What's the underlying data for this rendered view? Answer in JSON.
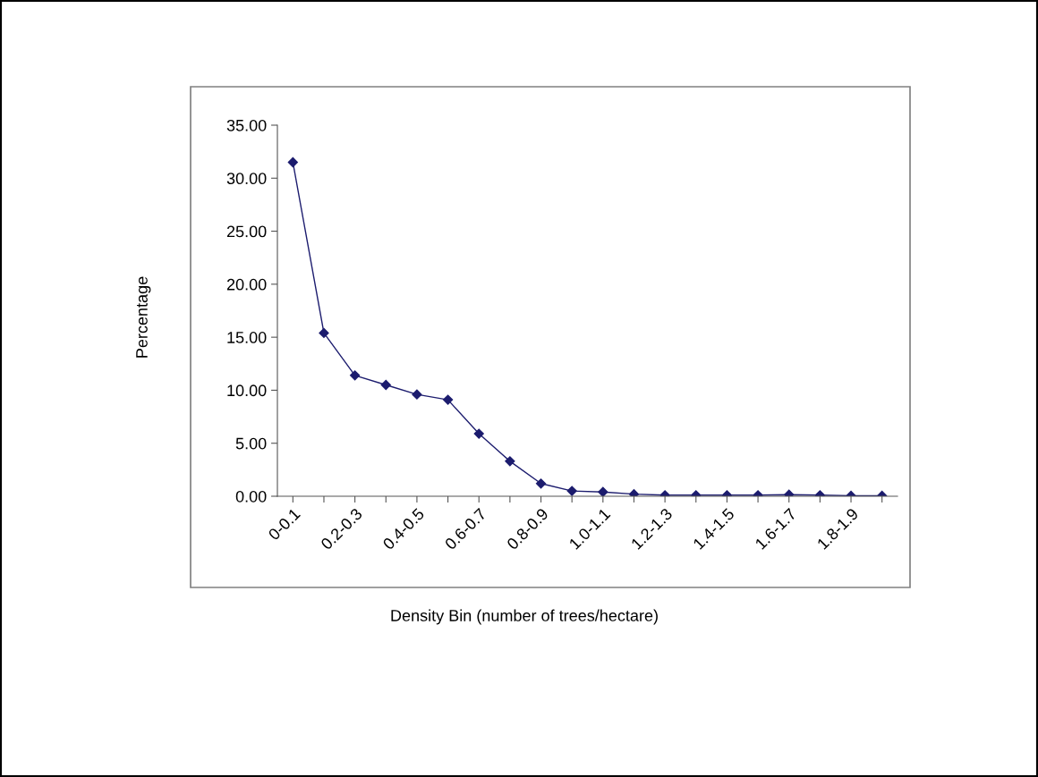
{
  "chart_data": {
    "type": "line",
    "xlabel": "Density Bin (number of trees/hectare)",
    "ylabel": "Percentage",
    "categories": [
      "0-0.1",
      null,
      "0.2-0.3",
      null,
      "0.4-0.5",
      null,
      "0.6-0.7",
      null,
      "0.8-0.9",
      null,
      "1.0-1.1",
      null,
      "1.2-1.3",
      null,
      "1.4-1.5",
      null,
      "1.6-1.7",
      null,
      "1.8-1.9",
      null
    ],
    "series": [
      {
        "color": "#1c1c6e",
        "values": [
          31.5,
          15.4,
          11.4,
          10.5,
          9.6,
          9.1,
          5.9,
          3.3,
          1.2,
          0.5,
          0.4,
          0.2,
          0.1,
          0.1,
          0.1,
          0.1,
          0.15,
          0.1,
          0.05,
          0.05
        ]
      }
    ],
    "ylim": [
      0,
      35
    ],
    "yticks": [
      {
        "value": 0,
        "label": "0.00"
      },
      {
        "value": 5,
        "label": "5.00"
      },
      {
        "value": 10,
        "label": "10.00"
      },
      {
        "value": 15,
        "label": "15.00"
      },
      {
        "value": 20,
        "label": "20.00"
      },
      {
        "value": 25,
        "label": "25.00"
      },
      {
        "value": 30,
        "label": "30.00"
      },
      {
        "value": 35,
        "label": "35.00"
      }
    ],
    "marker": "diamond",
    "line_style": "solid",
    "grid": false,
    "legend": false
  }
}
